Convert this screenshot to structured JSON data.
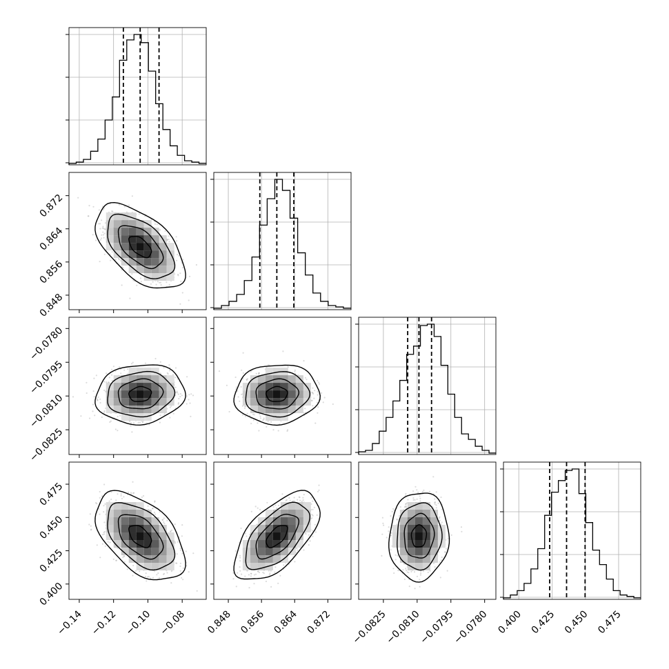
{
  "chart_data": {
    "type": "corner",
    "grid": true,
    "parameters": [
      {
        "ticks": [
          "−0.14",
          "−0.12",
          "−0.10",
          "−0.08"
        ],
        "tick_values": [
          -0.14,
          -0.12,
          -0.1,
          -0.08
        ],
        "range": [
          -0.146,
          -0.066
        ],
        "quantiles": [
          -0.1143,
          -0.1045,
          -0.0935
        ],
        "histogram": [
          1,
          2,
          4,
          10,
          19,
          33,
          50,
          77,
          92,
          96,
          90,
          69,
          45,
          26,
          14,
          7,
          3,
          2,
          1
        ]
      },
      {
        "ticks": [
          "0.848",
          "0.856",
          "0.864",
          "0.872"
        ],
        "tick_values": [
          0.848,
          0.856,
          0.864,
          0.872
        ],
        "range": [
          0.8445,
          0.8776
        ],
        "quantiles": [
          0.8556,
          0.8597,
          0.8638
        ],
        "histogram": [
          1,
          3,
          6,
          11,
          21,
          38,
          61,
          80,
          94,
          86,
          66,
          41,
          25,
          12,
          6,
          3,
          2,
          1
        ]
      },
      {
        "ticks": [
          "−0.0780",
          "−0.0795",
          "−0.0810",
          "−0.0825"
        ],
        "x_ticks": [
          "−0.0825",
          "−0.0810",
          "−0.0795",
          "−0.0780"
        ],
        "tick_values": [
          -0.0825,
          -0.081,
          -0.0795,
          -0.078
        ],
        "range": [
          -0.0836,
          -0.0775
        ],
        "quantiles": [
          -0.08142,
          -0.08092,
          -0.08036
        ],
        "histogram": [
          2,
          3,
          8,
          17,
          27,
          39,
          54,
          73,
          79,
          94,
          95,
          86,
          65,
          44,
          27,
          15,
          11,
          6,
          3,
          1
        ]
      },
      {
        "ticks": [
          "0.400",
          "0.425",
          "0.450",
          "0.475"
        ],
        "tick_values": [
          0.4,
          0.425,
          0.45,
          0.475
        ],
        "range": [
          0.3885,
          0.4916
        ],
        "quantiles": [
          0.4232,
          0.4359,
          0.4498
        ],
        "histogram": [
          1,
          3,
          6,
          11,
          21,
          35,
          58,
          74,
          82,
          89,
          90,
          73,
          53,
          34,
          24,
          14,
          6,
          3,
          2,
          1
        ]
      }
    ],
    "correlations": [
      {
        "x": 0,
        "y": 1,
        "rho": -0.55
      },
      {
        "x": 0,
        "y": 2,
        "rho": 0.1
      },
      {
        "x": 1,
        "y": 2,
        "rho": 0.05
      },
      {
        "x": 0,
        "y": 3,
        "rho": -0.5
      },
      {
        "x": 1,
        "y": 3,
        "rho": 0.6
      },
      {
        "x": 2,
        "y": 3,
        "rho": 0.05
      }
    ],
    "contour_levels_sigma": [
      0.5,
      1.0,
      1.5,
      2.0
    ]
  },
  "colors": {
    "line": "#000000",
    "grid": "#b0b0b0",
    "points": "#999999",
    "frame": "#000000"
  }
}
